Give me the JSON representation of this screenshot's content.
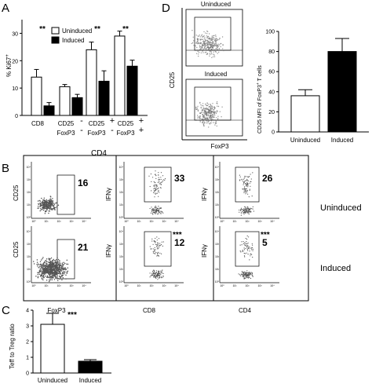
{
  "panels": {
    "a": "A",
    "b": "B",
    "c": "C",
    "d": "D"
  },
  "chart_data": [
    {
      "panel": "A",
      "type": "bar",
      "ylabel": "% Ki67",
      "ylabel_sup": "+",
      "ylim": [
        0,
        35
      ],
      "yticks": [
        "0",
        "10",
        "20",
        "30"
      ],
      "groups": [
        {
          "label_lines": [
            "CD8"
          ],
          "signs": []
        },
        {
          "label_lines": [
            "CD25",
            "FoxP3"
          ],
          "signs": [
            "-",
            "-"
          ]
        },
        {
          "label_lines": [
            "CD25",
            "FoxP3"
          ],
          "signs": [
            "+",
            "-"
          ]
        },
        {
          "label_lines": [
            "CD25",
            "FoxP3"
          ],
          "signs": [
            "+",
            "+"
          ]
        }
      ],
      "group_caption": "CD4",
      "series": [
        {
          "name": "Uninduced",
          "color": "#ffffff",
          "values": [
            14,
            10.5,
            24,
            29
          ],
          "errors": [
            2.8,
            0.8,
            2.8,
            1.8
          ]
        },
        {
          "name": "Induced",
          "color": "#000000",
          "values": [
            3.5,
            6.5,
            12.5,
            18
          ],
          "errors": [
            1.2,
            1.2,
            3.8,
            2.2
          ]
        }
      ],
      "significance": [
        "**",
        "",
        "**",
        "**"
      ],
      "legend": "top-center"
    },
    {
      "panel": "B",
      "type": "scatter",
      "description": "flow cytometry dot plots",
      "columns": [
        {
          "xlabel": "FoxP3",
          "ylabel": "CD25"
        },
        {
          "xlabel": "CD8",
          "ylabel": "IFNγ"
        },
        {
          "xlabel": "CD4",
          "ylabel": "IFNγ"
        }
      ],
      "rows": [
        "Uninduced",
        "Induced"
      ],
      "gate_values": [
        [
          "16",
          "33",
          "26"
        ],
        [
          "21",
          "12",
          "5"
        ]
      ],
      "significance": [
        [
          "",
          "",
          ""
        ],
        [
          "",
          "***",
          "***"
        ]
      ],
      "tick_labels": [
        "10⁰",
        "10¹",
        "10²",
        "10³",
        "10⁴"
      ]
    },
    {
      "panel": "C",
      "type": "bar",
      "ylabel": "Teff to Treg ratio",
      "ylim": [
        0,
        4
      ],
      "yticks": [
        "0",
        "1",
        "2",
        "3",
        "4"
      ],
      "categories": [
        "Uninduced",
        "Induced"
      ],
      "values": [
        3.1,
        0.75
      ],
      "errors": [
        0.7,
        0.1
      ],
      "colors": [
        "#ffffff",
        "#000000"
      ],
      "significance": "***"
    },
    {
      "panel": "D",
      "type": "bar",
      "ylabel": "CD25 MFI of FoxP3",
      "ylabel_sup": "+",
      "ylabel_tail": " T cells",
      "ylim": [
        0,
        100
      ],
      "yticks": [
        "0",
        "20",
        "40",
        "60",
        "80",
        "100"
      ],
      "categories": [
        "Uninduced",
        "Induced"
      ],
      "values": [
        36,
        80
      ],
      "errors": [
        6,
        13
      ],
      "colors": [
        "#ffffff",
        "#000000"
      ],
      "flow": {
        "top_label": "Uninduced",
        "bottom_label": "Induced",
        "ylabel": "CD25",
        "xlabel": "FoxP3"
      }
    }
  ]
}
